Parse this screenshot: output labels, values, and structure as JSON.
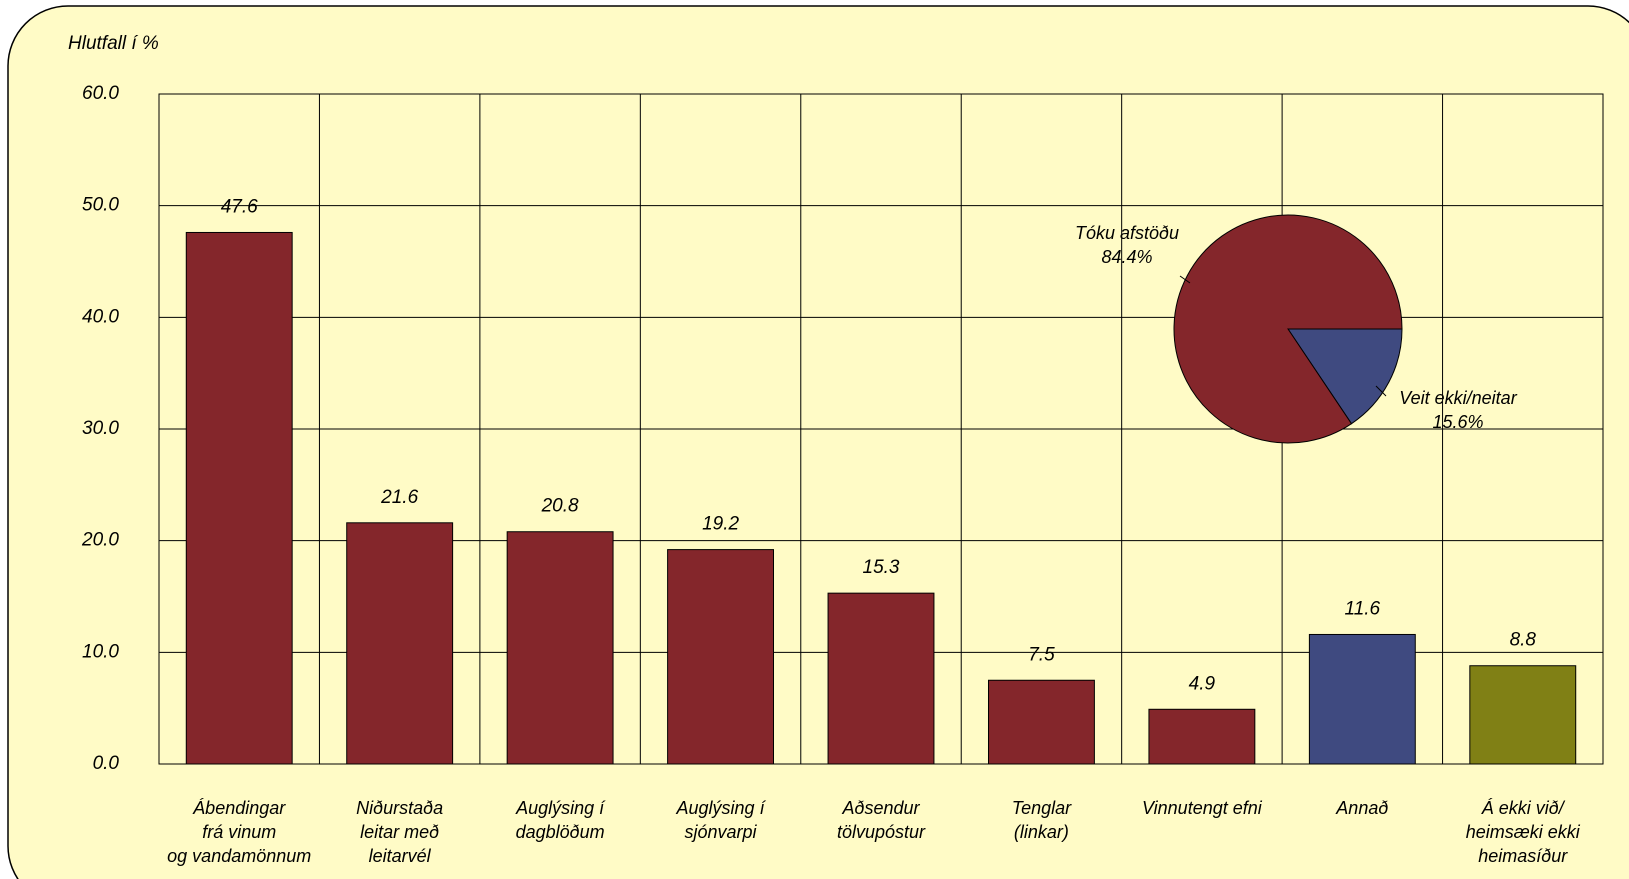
{
  "chart_data": [
    {
      "type": "bar",
      "ylabel": "Hlutfall í %",
      "categories": [
        "Ábendingar\nfrá vinum\nog vandamönnum",
        "Niðurstaða\nleitar með\nleitarvél",
        "Auglýsing í\ndagblöðum",
        "Auglýsing í\nsjónvarpi",
        "Aðsendur\ntölvupóstur",
        "Tenglar\n(linkar)",
        "Vinnutengt efni",
        "Annað",
        "Á ekki við/\nheimsæki ekki\nheimasíður"
      ],
      "values": [
        47.6,
        21.6,
        20.8,
        19.2,
        15.3,
        7.5,
        4.9,
        11.6,
        8.8
      ],
      "colors": [
        "#84262b",
        "#84262b",
        "#84262b",
        "#84262b",
        "#84262b",
        "#84262b",
        "#84262b",
        "#3f4a80",
        "#808015"
      ],
      "ylim": [
        0,
        60
      ],
      "yticks": [
        {
          "value": 0,
          "label": "0.0"
        },
        {
          "value": 10,
          "label": "10.0"
        },
        {
          "value": 20,
          "label": "20.0"
        },
        {
          "value": 30,
          "label": "30.0"
        },
        {
          "value": 40,
          "label": "40.0"
        },
        {
          "value": 50,
          "label": "50.0"
        },
        {
          "value": 60,
          "label": "60.0"
        }
      ],
      "grid": true
    },
    {
      "type": "pie",
      "categories": [
        "Tóku afstöðu",
        "Veit ekki/neitar"
      ],
      "values": [
        84.4,
        15.6
      ],
      "value_labels": [
        "84.4%",
        "15.6%"
      ],
      "colors": [
        "#84262b",
        "#3f4a80"
      ]
    }
  ]
}
